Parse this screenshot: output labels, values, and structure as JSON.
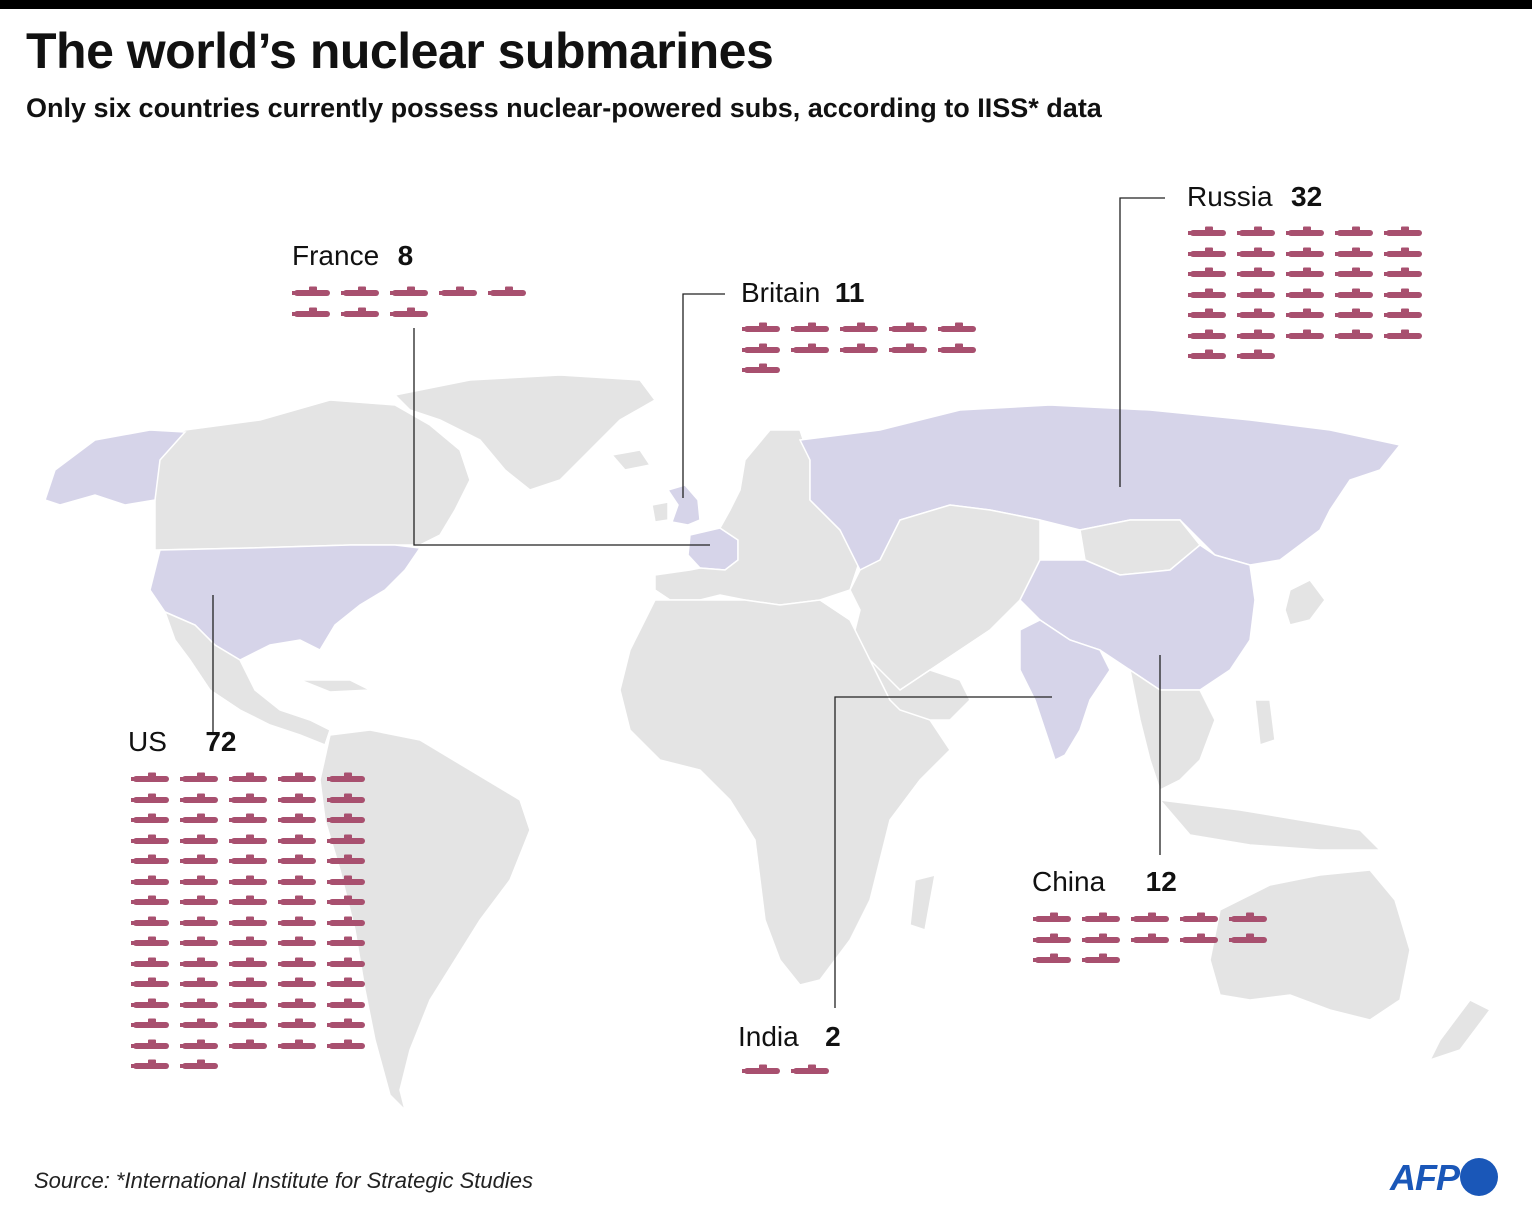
{
  "title": "The world’s nuclear submarines",
  "subtitle": "Only six countries currently possess nuclear-powered subs, according to IISS* data",
  "source": "Source: *International Institute for Strategic Studies",
  "logo": {
    "text": "AFP",
    "color": "#1a57b8"
  },
  "colors": {
    "land": "#e4e4e4",
    "nuclear_country": "#d6d4e9",
    "submarine": "#a8506f",
    "leader": "#222222"
  },
  "icon_name": "submarine-icon",
  "countries": [
    {
      "id": "us",
      "name": "US",
      "count": "72",
      "subs": 72
    },
    {
      "id": "france",
      "name": "France",
      "count": "8",
      "subs": 8
    },
    {
      "id": "britain",
      "name": "Britain",
      "count": "11",
      "subs": 11
    },
    {
      "id": "russia",
      "name": "Russia",
      "count": "32",
      "subs": 32
    },
    {
      "id": "china",
      "name": "China",
      "count": "12",
      "subs": 12
    },
    {
      "id": "india",
      "name": "India",
      "count": "2",
      "subs": 2
    }
  ]
}
